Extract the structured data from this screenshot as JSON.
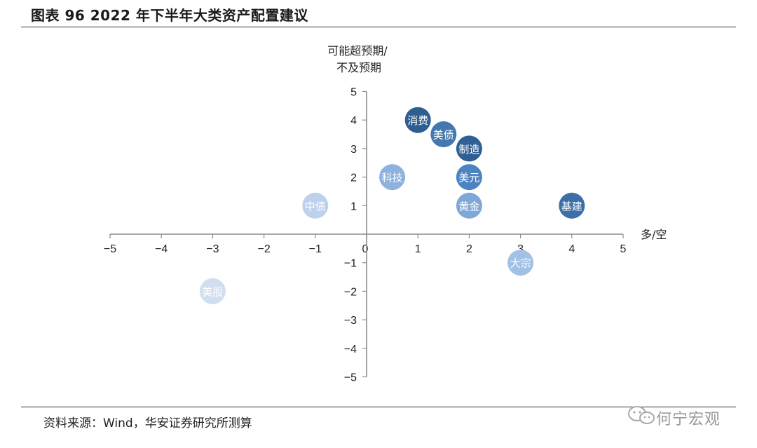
{
  "header": {
    "title": "图表 96 2022 年下半年大类资产配置建议"
  },
  "footer": {
    "source": "资料来源：Wind，华安证券研究所测算"
  },
  "watermark": {
    "text": "何宁宏观",
    "icon": "wechat-icon"
  },
  "chart_data": {
    "type": "scatter",
    "title": "",
    "xlabel": "多/空",
    "ylabel_lines": [
      "可能超预期/",
      "不及预期"
    ],
    "xlim": [
      -5,
      5
    ],
    "ylim": [
      -5,
      5
    ],
    "xticks": [
      -5,
      -4,
      -3,
      -2,
      -1,
      0,
      1,
      2,
      3,
      4,
      5
    ],
    "yticks": [
      -5,
      -4,
      -3,
      -2,
      -1,
      0,
      1,
      2,
      3,
      4,
      5
    ],
    "grid": false,
    "points": [
      {
        "label": "消费",
        "x": 1,
        "y": 4,
        "color": "#2e5d8f"
      },
      {
        "label": "美债",
        "x": 1.5,
        "y": 3.5,
        "color": "#4478b0"
      },
      {
        "label": "制造",
        "x": 2,
        "y": 3,
        "color": "#2f5f93"
      },
      {
        "label": "科技",
        "x": 0.5,
        "y": 2,
        "color": "#8db2dd"
      },
      {
        "label": "美元",
        "x": 2,
        "y": 2,
        "color": "#4d83c0"
      },
      {
        "label": "中债",
        "x": -1,
        "y": 1,
        "color": "#bdd1ec"
      },
      {
        "label": "黄金",
        "x": 2,
        "y": 1,
        "color": "#7fa8d8"
      },
      {
        "label": "基建",
        "x": 4,
        "y": 1,
        "color": "#3a6fa8"
      },
      {
        "label": "大宗",
        "x": 3,
        "y": -1,
        "color": "#a3c0e5"
      },
      {
        "label": "美股",
        "x": -3,
        "y": -2,
        "color": "#d0deef"
      }
    ]
  }
}
